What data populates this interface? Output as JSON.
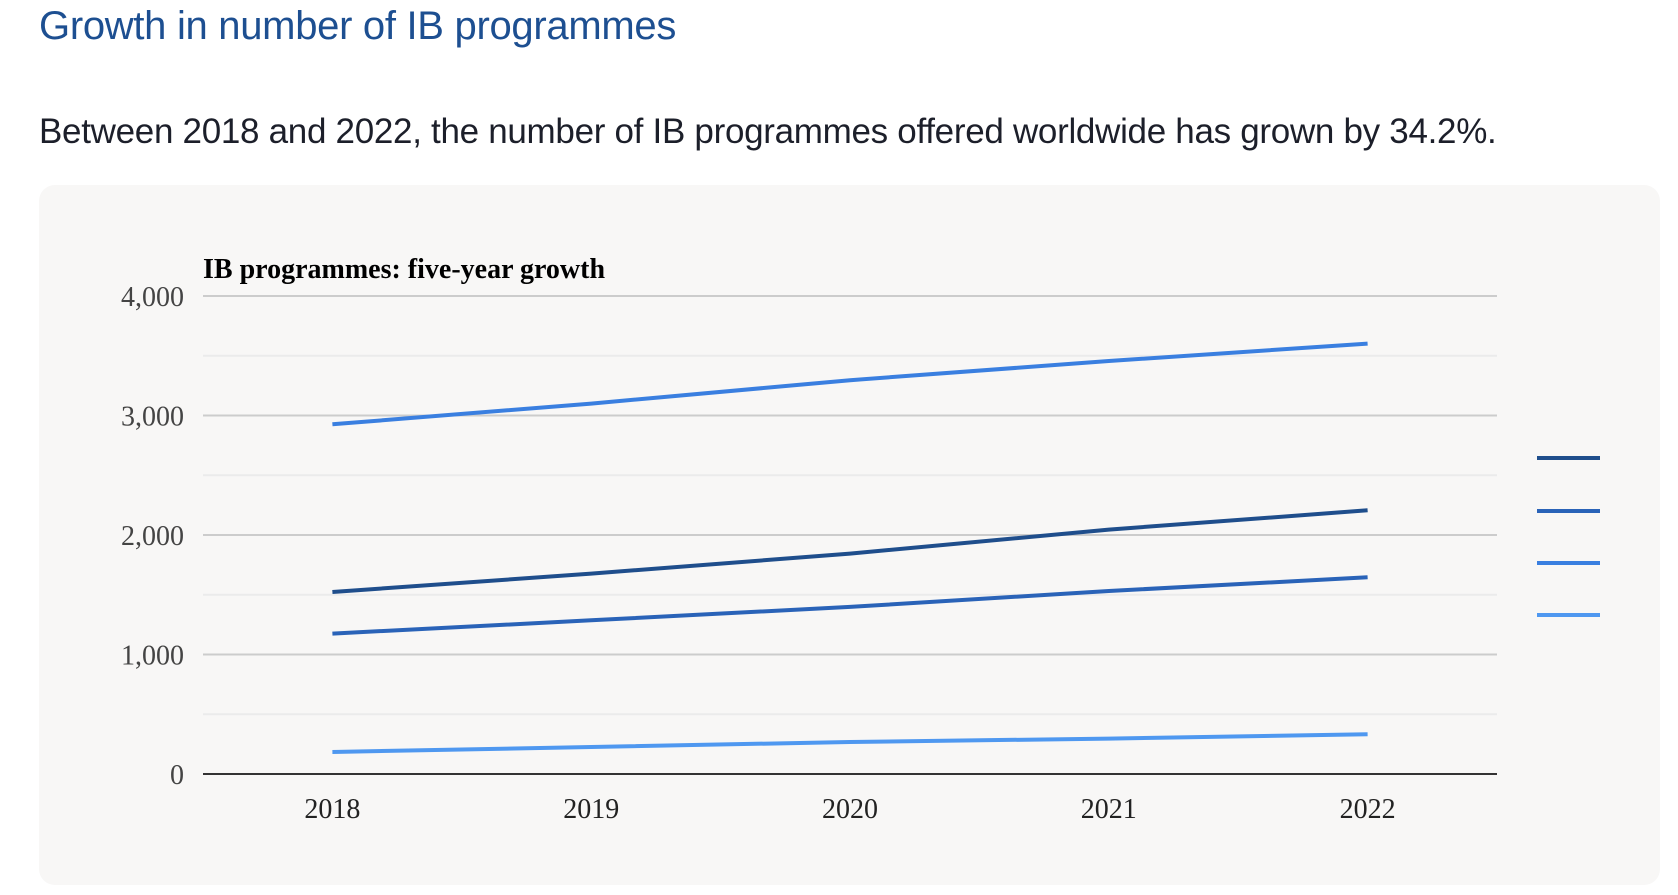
{
  "page": {
    "heading": "Growth in number of IB programmes",
    "lede": "Between 2018 and 2022, the number of IB programmes offered worldwide has grown by 34.2%."
  },
  "chart_data": {
    "type": "line",
    "title": "IB programmes: five-year growth",
    "xlabel": "",
    "ylabel": "",
    "categories": [
      "2018",
      "2019",
      "2020",
      "2021",
      "2022"
    ],
    "ylim": [
      0,
      4000
    ],
    "yticks": [
      0,
      1000,
      2000,
      3000,
      4000
    ],
    "ytick_labels": [
      "0",
      "1,000",
      "2,000",
      "3,000",
      "4,000"
    ],
    "grid": true,
    "legend_position": "right",
    "series": [
      {
        "name": "",
        "color": "#1f4e8c",
        "values": [
          1523,
          1677,
          1844,
          2045,
          2207
        ]
      },
      {
        "name": "",
        "color": "#2a63b8",
        "values": [
          1175,
          1286,
          1398,
          1531,
          1646
        ]
      },
      {
        "name": "",
        "color": "#3a7fe0",
        "values": [
          2926,
          3100,
          3295,
          3456,
          3602
        ]
      },
      {
        "name": "",
        "color": "#4f98f0",
        "values": [
          184,
          226,
          268,
          296,
          332
        ]
      }
    ],
    "legend_order": [
      0,
      1,
      2,
      3
    ]
  }
}
